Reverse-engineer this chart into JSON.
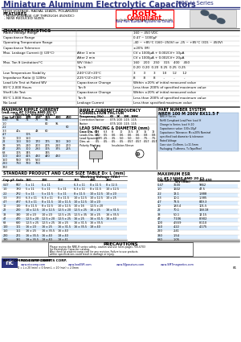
{
  "title": "Miniature Aluminum Electrolytic Capacitors",
  "series": "NRE-H Series",
  "header_color": "#2d3580",
  "bg_color": "#ffffff",
  "subtitle": "HIGH VOLTAGE, RADIAL LEADS, POLARIZED",
  "features": [
    "HIGH VOLTAGE (UP THROUGH 450VDC)",
    "NEW REDUCED SIZES"
  ],
  "char_data": [
    [
      "Rated Voltage Range",
      "",
      "160 ~ 450 VDC"
    ],
    [
      "Capacitance Range",
      "",
      "0.47 ~ 1000μF"
    ],
    [
      "Operating Temperature Range",
      "",
      "-40 ~ +85°C (160~250V) or -25 ~ +85°C (315 ~ 450V)"
    ],
    [
      "Capacitance Tolerance",
      "",
      "±20% (M)"
    ],
    [
      "Max. Leakage Current @ (20°C)",
      "After 1 min",
      "CV x 1000μA + 0.002CV+ 10μA"
    ],
    [
      "",
      "After 2 min",
      "CV x 1000μA + 0.002CV+ 20μA"
    ],
    [
      "Max. Tan δ Limitation/°C",
      "WV (Vdc)",
      "160    200    250    315    400    450"
    ],
    [
      "",
      "Tan δ",
      "0.20  0.20  0.20  0.25  0.25  0.25"
    ],
    [
      "Low Temperature Stability",
      "Z-40°C/Z+20°C",
      "3        3        3       10      12      12"
    ],
    [
      "Impedance Ratio @ 120Hz",
      "Z-25°C/Z+20°C",
      "8        8        8        -         -         -"
    ],
    [
      "Load Life Test at Rated WV",
      "Capacitance Change",
      "Within ±20% of initial measured value"
    ],
    [
      "85°C 2,000 Hours",
      "Tan δ",
      "Less than 200% of specified maximum value"
    ],
    [
      "Shelf Life Test",
      "Capacitance Change",
      "Within ±20% of initial measured value"
    ],
    [
      "85°C 1,000 Hours",
      "Tan δ",
      "Less than 200% of specified maximum value"
    ],
    [
      "No Load",
      "Leakage Current",
      "Less than specified maximum value"
    ]
  ],
  "ripple_cols": [
    "Cap (μF)",
    "160",
    "200",
    "250",
    "315",
    "400",
    "450"
  ],
  "ripple_wv_header": "Working Voltage (Vdc)",
  "ripple_data": [
    [
      "0.47",
      "55",
      "71",
      "77",
      "54",
      "",
      ""
    ],
    [
      "1.0",
      "",
      "",
      "",
      "80",
      "95",
      ""
    ],
    [
      "2.2",
      "",
      "",
      "",
      "",
      "",
      "60"
    ],
    [
      "3.3",
      "40s",
      "",
      "48",
      "60",
      "",
      ""
    ],
    [
      "4.7",
      "",
      "105",
      "",
      "",
      "",
      ""
    ],
    [
      "10",
      "100",
      "150",
      "",
      "",
      "",
      ""
    ],
    [
      "22",
      "133",
      "160",
      "170",
      "175",
      "190",
      "180"
    ],
    [
      "33",
      "185",
      "210",
      "200",
      "205",
      "210",
      "200"
    ],
    [
      "47",
      "245",
      "300",
      "280",
      "305",
      "375",
      "265"
    ],
    [
      "68",
      "305",
      "345",
      "",
      "345",
      "",
      ""
    ],
    [
      "100",
      "410",
      "415",
      "430",
      "440",
      "430",
      ""
    ],
    [
      "150",
      "550",
      "575",
      "560",
      "",
      "",
      ""
    ],
    [
      "220",
      "710",
      "760",
      "760",
      "",
      "",
      ""
    ],
    [
      "330",
      "",
      "",
      "",
      "",
      "",
      ""
    ]
  ],
  "freq_data": [
    [
      "Frequency (Hz)",
      "60",
      "1K",
      "10K",
      "100K"
    ],
    [
      "Correction factor",
      "0.75",
      "1.00",
      "1.15",
      "1.15"
    ],
    [
      "Factor",
      "0.75",
      "1.00",
      "1.15",
      "1.15"
    ]
  ],
  "lead_cases": [
    "5",
    "6.3",
    "8",
    "10",
    "12.5",
    "13",
    "16",
    "18"
  ],
  "lead_dia": [
    "0.5",
    "0.5",
    "0.6",
    "0.6",
    "0.6",
    "0.6",
    "0.8",
    "0.8"
  ],
  "lead_space": [
    "2.0",
    "2.5",
    "3.5",
    "5.0",
    "5.0",
    "5.0",
    "7.5",
    "7.5"
  ],
  "lead_dim": [
    "0.5",
    "0.5",
    "0.5",
    "0.5",
    "0.57",
    "0.57",
    "0.57",
    "0.57"
  ],
  "part_example": "NREH 100 M 200V 8X11.5 F",
  "pn_labels": [
    "NRE-H Series",
    "RoHS Compliant Lead-Free",
    "Change to Series (xxx)",
    "Capacitance value: 100 = 10μF (in μF)",
    "Capacitance Tolerance: M=±20% of Nominal",
    "specified lead diameter & tolerance acceptance",
    "Rated Voltage",
    "Case size: D=8mm, L=11.5mm"
  ],
  "std_cols": [
    "Cap μF",
    "Code",
    "160",
    "200",
    "250",
    "315",
    "400",
    "450"
  ],
  "std_wv": "Working Voltage (Vdc)",
  "std_data": [
    [
      "0.47",
      "R47",
      "5 x 11",
      "5 x 11",
      "",
      "6.3 x 11",
      "8 x 11 5",
      "8 x 12.5"
    ],
    [
      "1.0",
      "1R0",
      "5 x 11",
      "5 x 11",
      "5 x 11",
      "6.3 x 11",
      "8 x 11.5",
      "10 x 12.5"
    ],
    [
      "2.2",
      "2R2",
      "5 x 11",
      "5 x 11 5",
      "5 x 11",
      "8 x 11.5",
      "10 x 12.5",
      "10 x 20"
    ],
    [
      "3.3",
      "3R3",
      "6.3 x 11",
      "6.3 x 11",
      "8 x 11.5",
      "10 x 12.5",
      "10 x 12.5",
      "10 x 25"
    ],
    [
      "4.7",
      "4R7",
      "6.3 x 11",
      "8 x 11.5",
      "10 x 11.5",
      "10 x 12.5",
      "10 x 20",
      ""
    ],
    [
      "10",
      "100",
      "8 x 11.5",
      "8 x 12.5",
      "10 x 12.5",
      "10 x 16",
      "12.5 x 20",
      ""
    ],
    [
      "22",
      "220",
      "10 x 12.5",
      "10 x 12.5",
      "12.5 x 20",
      "12.5 x 25",
      "16 x 25",
      "16 x 31.5"
    ],
    [
      "33",
      "330",
      "10 x 20",
      "10 x 20",
      "12.5 x 25",
      "12.5 x 35",
      "16 x 25",
      "16 x 35.5"
    ],
    [
      "47",
      "470",
      "12.5 x 20",
      "12.5 x 20",
      "12.5 x 25",
      "16 x 25",
      "16 x 31.5",
      "16 x 40"
    ],
    [
      "68",
      "680",
      "12.5 x 25",
      "12.5 x 25",
      "16 x 25",
      "16 x 31.5",
      "16 x 35.5",
      ""
    ],
    [
      "100",
      "101",
      "16 x 20",
      "16 x 25",
      "16 x 31.5",
      "16 x 35.5",
      "18 x 40",
      ""
    ],
    [
      "150",
      "151",
      "16 x 25",
      "16 x 35.5",
      "16 x 40",
      "",
      "",
      ""
    ],
    [
      "220",
      "221",
      "16 x 35.5",
      "16 x 40",
      "18 x 40",
      "",
      "",
      ""
    ],
    [
      "330",
      "331",
      "18 x 35.5",
      "18 x 40",
      "18 x 41",
      "",
      "",
      ""
    ]
  ],
  "esr_cols": [
    "Cap (μF)",
    "WV (Vdc)",
    ""
  ],
  "esr_wv": [
    "160-250",
    "250-450"
  ],
  "esr_data": [
    [
      "0.47",
      "3500",
      "9862"
    ],
    [
      "1.0",
      "1602",
      "47.5"
    ],
    [
      "2.2",
      "13.1",
      "1.888"
    ],
    [
      "3.3",
      "10.1",
      "1.385"
    ],
    [
      "4.7",
      "73.5",
      "849.3"
    ],
    [
      "10",
      "183.4",
      "101.5"
    ],
    [
      "22",
      "70.1",
      "138.18"
    ],
    [
      "33",
      "50.1",
      "12.15"
    ],
    [
      "47",
      "7.106",
      "8.902"
    ],
    [
      "100",
      "4.559",
      "8.110"
    ],
    [
      "150",
      "4.22",
      "4.175"
    ],
    [
      "220",
      "2.41",
      ""
    ],
    [
      "330",
      "1.54",
      ""
    ],
    [
      "680",
      "1.05",
      ""
    ]
  ],
  "precautions_text": [
    "Please review the NRE-H series safety, caution and use notes pages 700-6703",
    "for Electrolytic Capacitor catalog.",
    "Also check at www.niccomp.com for any revision. Failure to use products",
    "within specifications could result in damage or injury."
  ],
  "company": "NIC COMPONENTS CORP.",
  "websites": [
    "www.niccomp.com",
    "www.lowESR.com",
    "www.NJpasives.com",
    "www.SMTmagnetics.com"
  ],
  "footnote": "D = L x 20 (min) = 0.5mm L = 20 (min) = 2.0mm"
}
